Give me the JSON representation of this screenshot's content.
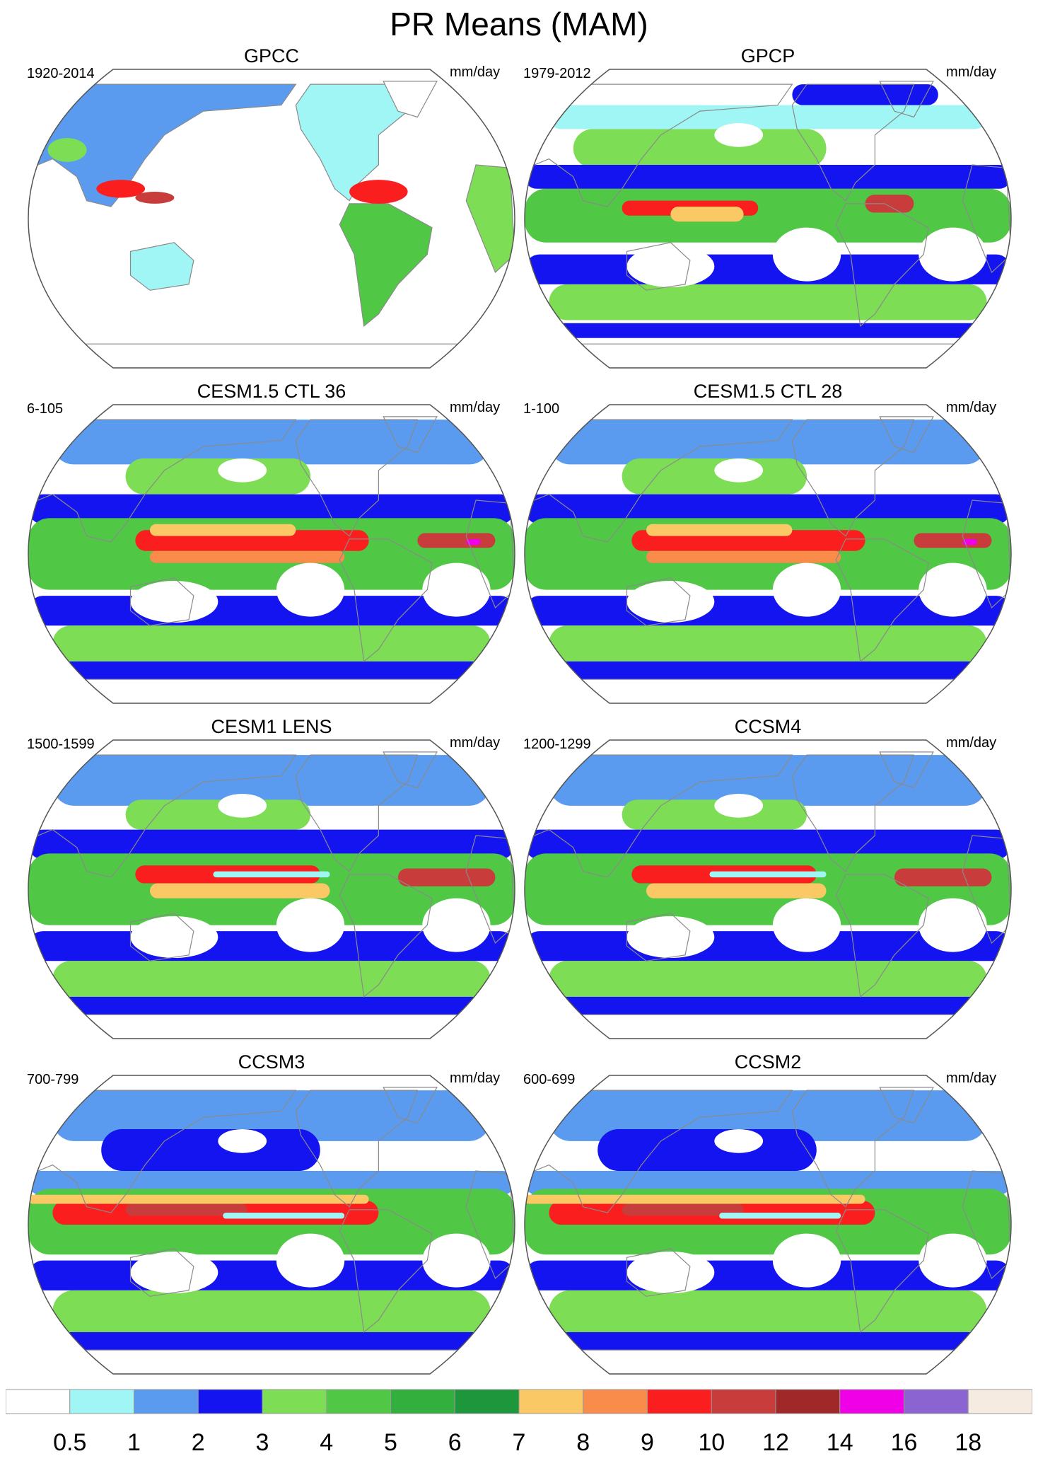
{
  "title": "PR Means (MAM)",
  "colors": {
    "ocean_default": "#ffffff",
    "land_outline": "#8a8a8a",
    "frame": "#555555"
  },
  "panels": [
    {
      "id": "gpcc",
      "title": "GPCC",
      "period": "1920-2014",
      "units": "mm/day",
      "style": "land-only"
    },
    {
      "id": "gpcp",
      "title": "GPCP",
      "period": "1979-2012",
      "units": "mm/day",
      "style": "obs"
    },
    {
      "id": "cesm15-36",
      "title": "CESM1.5 CTL 36",
      "period": "6-105",
      "units": "mm/day",
      "style": "model-a"
    },
    {
      "id": "cesm15-28",
      "title": "CESM1.5 CTL 28",
      "period": "1-100",
      "units": "mm/day",
      "style": "model-a"
    },
    {
      "id": "cesm1-lens",
      "title": "CESM1 LENS",
      "period": "1500-1599",
      "units": "mm/day",
      "style": "model-b"
    },
    {
      "id": "ccsm4",
      "title": "CCSM4",
      "period": "1200-1299",
      "units": "mm/day",
      "style": "model-b"
    },
    {
      "id": "ccsm3",
      "title": "CCSM3",
      "period": "700-799",
      "units": "mm/day",
      "style": "model-c"
    },
    {
      "id": "ccsm2",
      "title": "CCSM2",
      "period": "600-699",
      "units": "mm/day",
      "style": "model-c"
    }
  ],
  "colorbar": {
    "colors": [
      "#ffffff",
      "#a0f5f5",
      "#5a9bf0",
      "#1414f0",
      "#7ddd55",
      "#50c846",
      "#32af3c",
      "#1e963c",
      "#fac864",
      "#fa8c4b",
      "#fa1e1e",
      "#c83c3c",
      "#a02828",
      "#f000e6",
      "#8c64d2",
      "#f5ebe1"
    ],
    "labels": [
      "0.5",
      "1",
      "2",
      "3",
      "4",
      "5",
      "6",
      "7",
      "8",
      "9",
      "10",
      "12",
      "14",
      "16",
      "18"
    ]
  }
}
